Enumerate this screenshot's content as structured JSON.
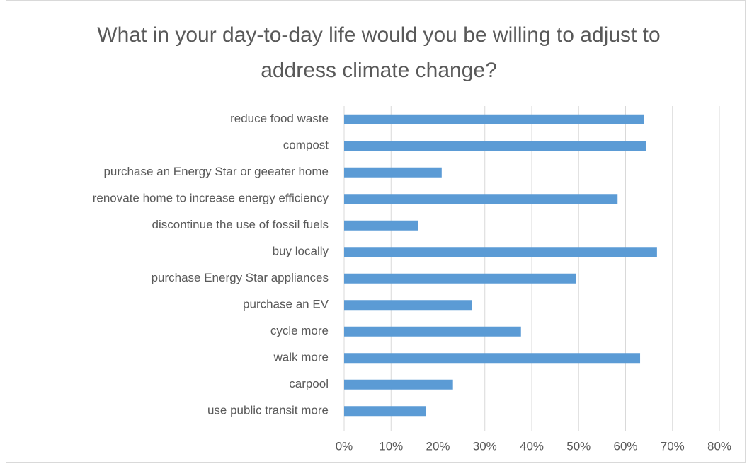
{
  "chart_data": {
    "type": "barh",
    "title": "What in your day-to-day life would you be willing to adjust to address climate change?",
    "categories": [
      "reduce food waste",
      "compost",
      "purchase an Energy Star or geeater home",
      "renovate home to increase energy efficiency",
      "discontinue the use of fossil fuels",
      "buy locally",
      "purchase Energy Star appliances",
      "purchase an EV",
      "cycle more",
      "walk more",
      "carpool",
      "use public transit more"
    ],
    "values": [
      64.0,
      64.3,
      20.8,
      58.3,
      15.7,
      66.7,
      49.5,
      27.2,
      37.7,
      63.1,
      23.2,
      17.5
    ],
    "color": "#5b9bd5",
    "xlim": [
      0,
      80
    ],
    "xticks": [
      {
        "value": 0,
        "label": "0%"
      },
      {
        "value": 10,
        "label": "10%"
      },
      {
        "value": 20,
        "label": "20%"
      },
      {
        "value": 30,
        "label": "30%"
      },
      {
        "value": 40,
        "label": "40%"
      },
      {
        "value": 50,
        "label": "50%"
      },
      {
        "value": 60,
        "label": "60%"
      },
      {
        "value": 70,
        "label": "70%"
      },
      {
        "value": 80,
        "label": "80%"
      }
    ],
    "grid": true
  }
}
